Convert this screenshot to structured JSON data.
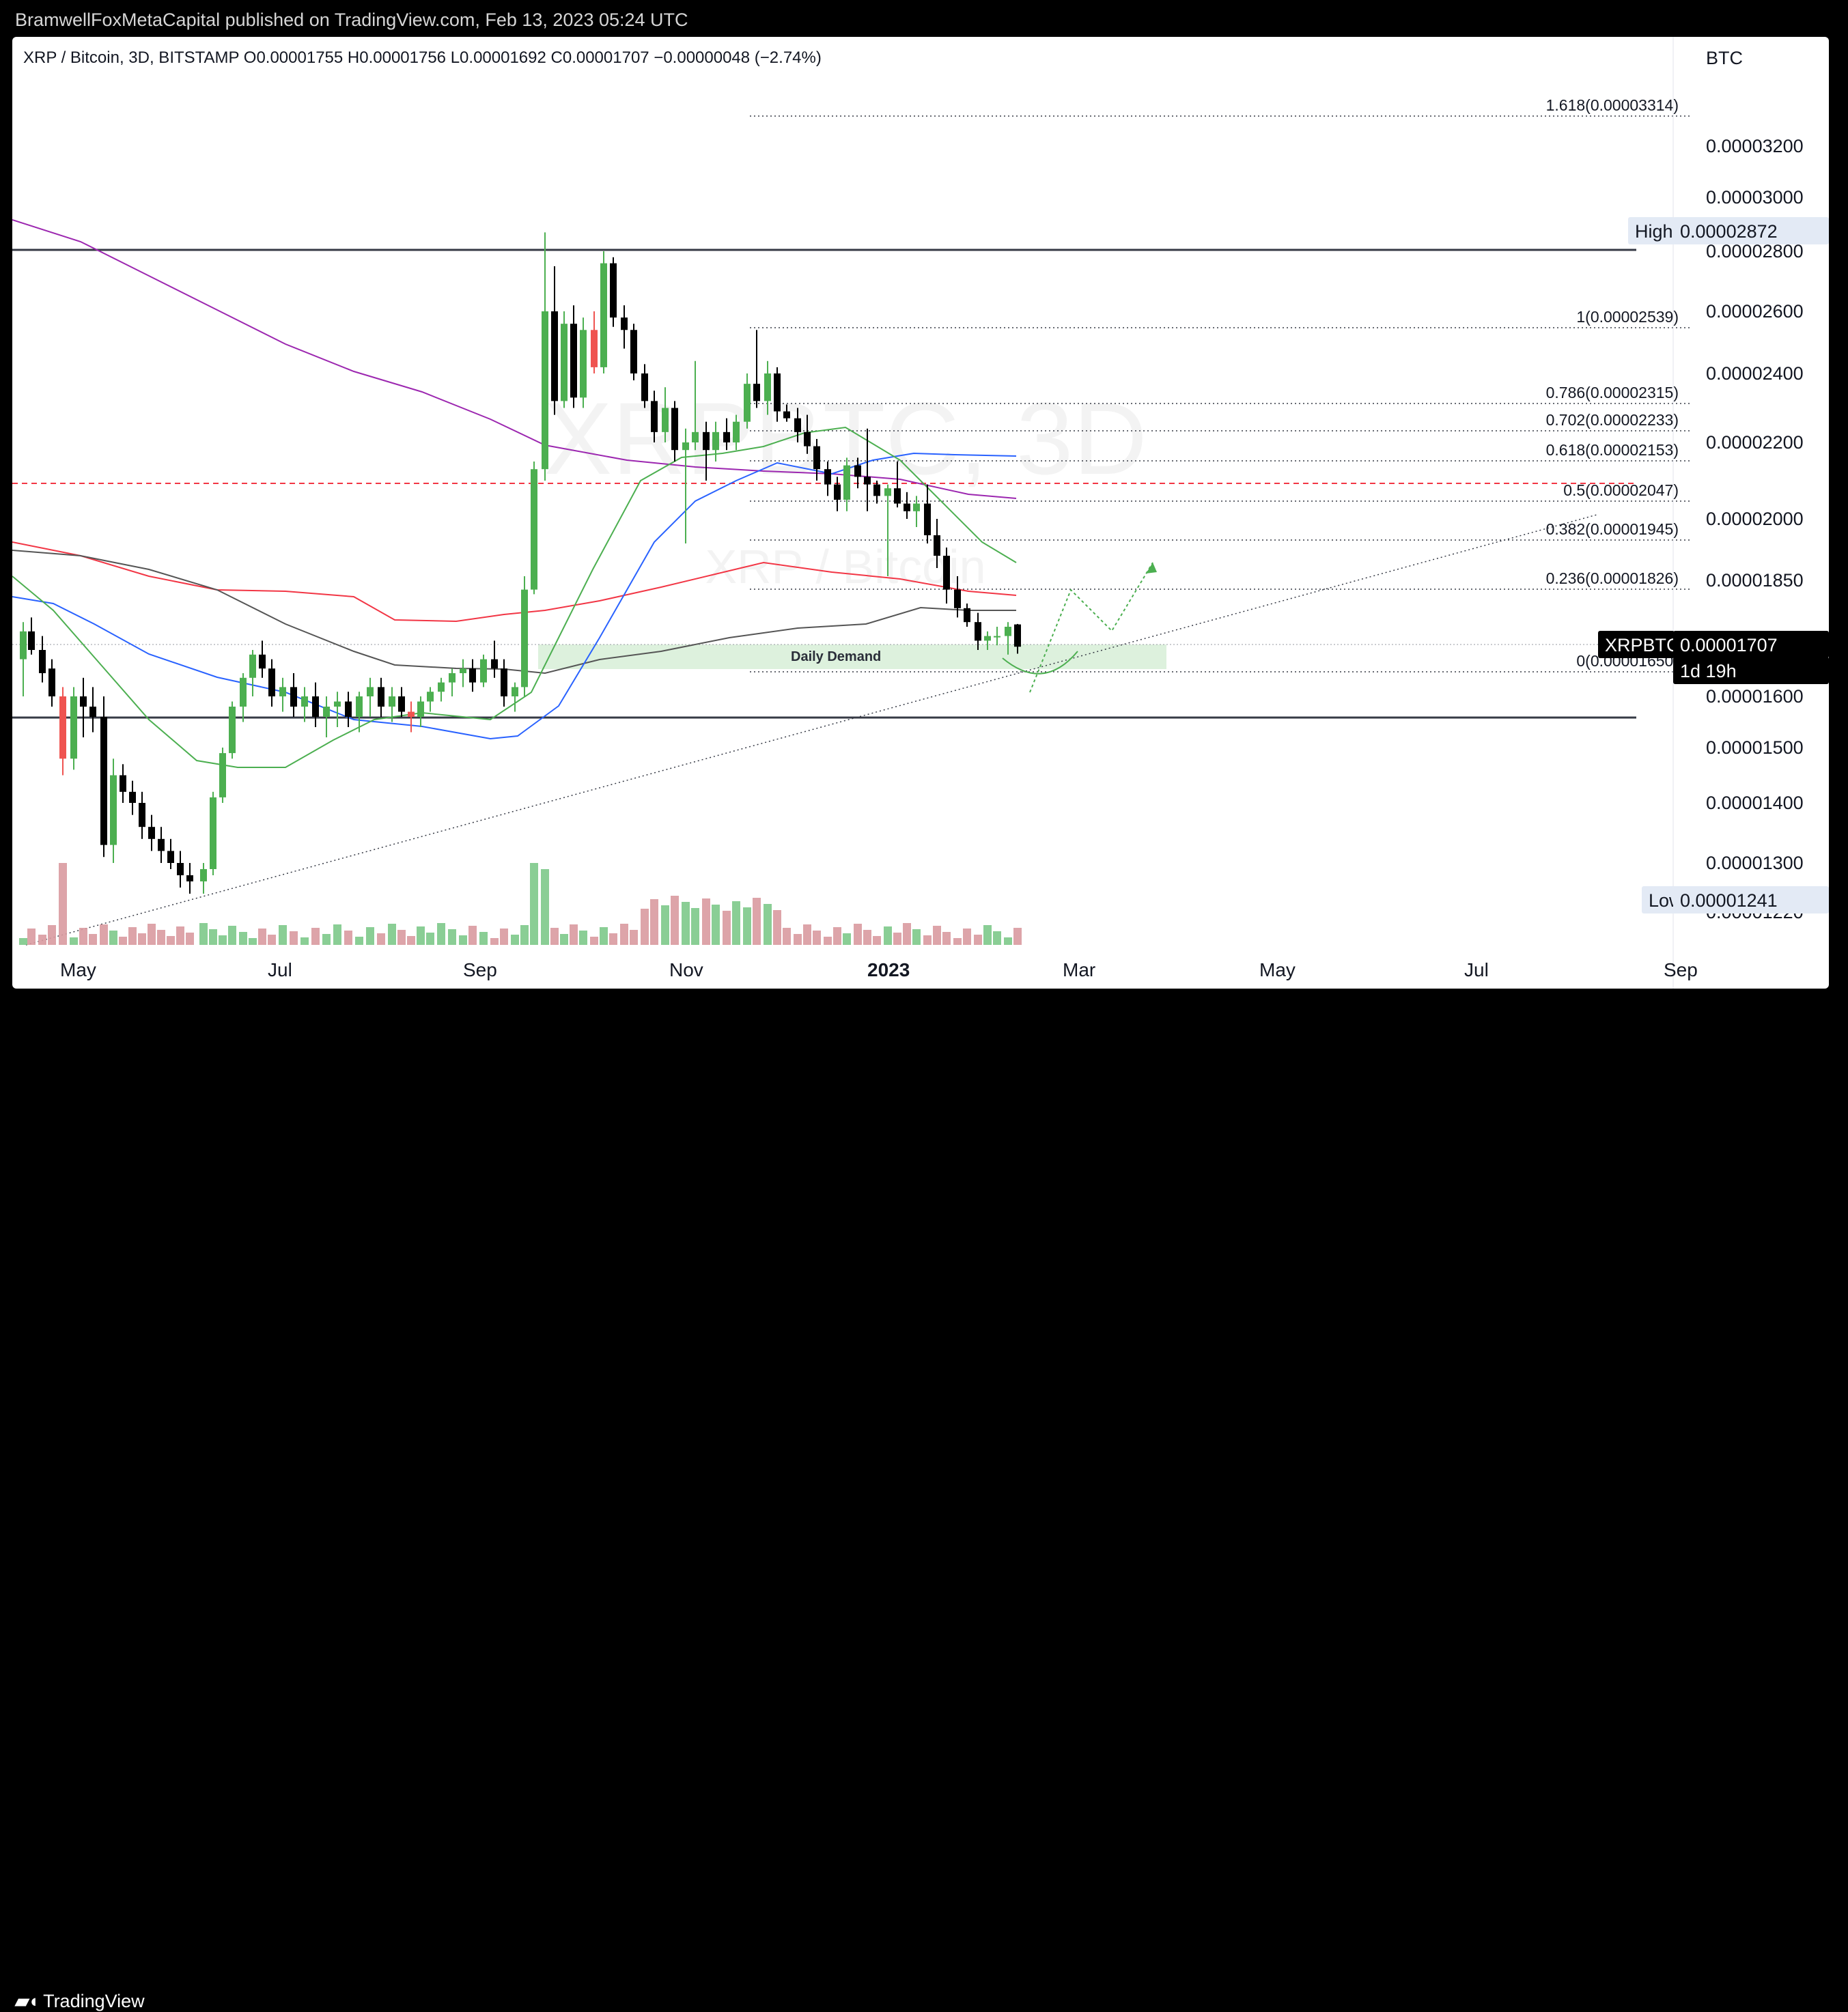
{
  "header": {
    "publish_text": "BramwellFoxMetaCapital published on TradingView.com, Feb 13, 2023 05:24 UTC"
  },
  "footer": {
    "logo_text": "TradingView",
    "logo_icon": "tradingview-logo-icon"
  },
  "chart_data": {
    "type": "candlestick",
    "symbol_line": "XRP / Bitcoin, 3D, BITSTAMP  O0.00001755  H0.00001756  L0.00001692  C0.00001707  −0.00000048 (−2.74%)",
    "watermark": "XRPBTC, 3D",
    "watermark_sub": "XRP / Bitcoin",
    "currency": "BTC",
    "x_ticks": [
      "May",
      "Jul",
      "Sep",
      "Nov",
      "2023",
      "Mar",
      "May",
      "Jul",
      "Sep"
    ],
    "y_ticks": [
      "0.00003200",
      "0.00003000",
      "0.00002800",
      "0.00002600",
      "0.00002400",
      "0.00002200",
      "0.00002000",
      "0.00001850",
      "0.00001600",
      "0.00001500",
      "0.00001400",
      "0.00001300",
      "0.00001220"
    ],
    "price_labels": {
      "high_label": "High",
      "high_value": "0.00002872",
      "low_label": "Low",
      "low_value": "0.00001241",
      "last_symbol": "XRPBTC",
      "last_value": "0.00001707",
      "last_countdown": "1d 19h"
    },
    "fib_levels": [
      {
        "label": "1.618(0.00003314)",
        "price": 3.314e-05
      },
      {
        "label": "1(0.00002539)",
        "price": 2.539e-05
      },
      {
        "label": "0.786(0.00002315)",
        "price": 2.315e-05
      },
      {
        "label": "0.702(0.00002233)",
        "price": 2.233e-05
      },
      {
        "label": "0.618(0.00002153)",
        "price": 2.153e-05
      },
      {
        "label": "0.5(0.00002047)",
        "price": 2.047e-05
      },
      {
        "label": "0.382(0.00001945)",
        "price": 1.945e-05
      },
      {
        "label": "0.236(0.00001826)",
        "price": 1.826e-05
      },
      {
        "label": "0(0.00001650)",
        "price": 1.65e-05
      }
    ],
    "zone_label": "Daily Demand",
    "horizontal_levels": [
      2.8e-05,
      1.555e-05
    ],
    "dashed_level": 2.06e-05,
    "colors": {
      "up": "#26a69a",
      "up_candle": "#4caf50",
      "down": "#000000",
      "down_red": "#ef5350",
      "ma_purple": "#9c27b0",
      "ma_blue": "#2962ff",
      "ma_red": "#f23645",
      "ma_gray": "#555555",
      "ma_green": "#4caf50",
      "zone": "#d9f0d9",
      "vol_up": "#7dc98a",
      "vol_down": "#d99aa0"
    }
  }
}
